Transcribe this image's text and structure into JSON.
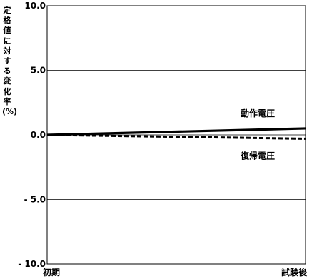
{
  "chart_data": {
    "type": "line",
    "ylabel": "定格値に対する変化率(%)",
    "x": [
      "初期",
      "試験後"
    ],
    "ylim": [
      -10.0,
      10.0
    ],
    "yticks": [
      "10.0",
      "5.0",
      "0.0",
      "- 5.0",
      "- 10.0"
    ],
    "ytick_values": [
      10.0,
      5.0,
      0.0,
      -5.0,
      -10.0
    ],
    "grid": true,
    "series": [
      {
        "name": "動作電圧",
        "values": [
          0.0,
          0.5
        ],
        "style": "solid",
        "color": "#000000"
      },
      {
        "name": "復帰電圧",
        "values": [
          0.0,
          -0.3
        ],
        "style": "dashed",
        "color": "#000000"
      }
    ]
  }
}
